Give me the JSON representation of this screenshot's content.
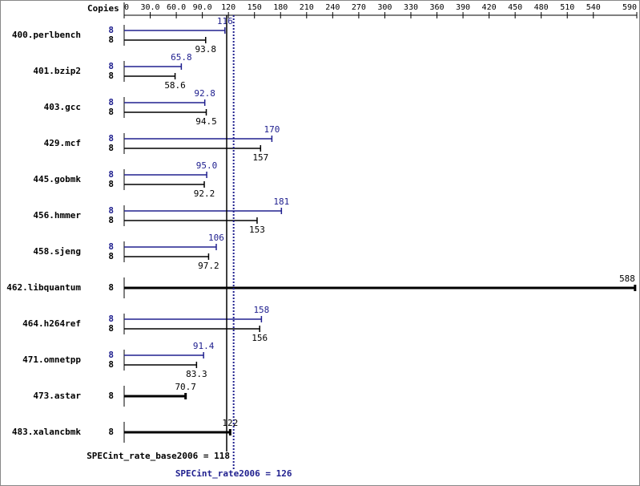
{
  "chart_data": {
    "type": "bar",
    "orientation": "horizontal",
    "axis_label": "Copies",
    "categories": [
      "400.perlbench",
      "401.bzip2",
      "403.gcc",
      "429.mcf",
      "445.gobmk",
      "456.hmmer",
      "458.sjeng",
      "462.libquantum",
      "464.h264ref",
      "471.omnetpp",
      "473.astar",
      "483.xalancbmk"
    ],
    "series": [
      {
        "color": "#20208f",
        "copies": [
          8,
          8,
          8,
          8,
          8,
          8,
          8,
          null,
          8,
          8,
          null,
          null
        ],
        "values": [
          116,
          65.8,
          92.8,
          170,
          95,
          181,
          106,
          null,
          158,
          91.4,
          null,
          null
        ],
        "value_labels": [
          "116",
          "65.8",
          "92.8",
          "170",
          "95.0",
          "181",
          "106",
          null,
          "158",
          "91.4",
          null,
          null
        ]
      },
      {
        "color": "#000000",
        "copies": [
          8,
          8,
          8,
          8,
          8,
          8,
          8,
          8,
          8,
          8,
          8,
          8
        ],
        "values": [
          93.8,
          58.6,
          94.5,
          157,
          92.2,
          153,
          97.2,
          588,
          156,
          83.3,
          70.7,
          122
        ]
      }
    ],
    "xlim": [
      0,
      590
    ],
    "xticks": [
      0,
      {
        "value": 30,
        "label": "30.0"
      },
      {
        "value": 60,
        "label": "60.0"
      },
      {
        "value": 90,
        "label": "90.0"
      },
      120,
      150,
      180,
      210,
      240,
      270,
      300,
      330,
      360,
      390,
      420,
      450,
      480,
      510,
      540,
      590
    ],
    "reference_lines": [
      {
        "label": "SPECint_rate_base2006 = 118",
        "value": 118,
        "color": "#000000",
        "style": "solid"
      },
      {
        "label": "SPECint_rate2006 = 126",
        "value": 126,
        "color": "#20208f",
        "style": "dotted"
      }
    ]
  }
}
